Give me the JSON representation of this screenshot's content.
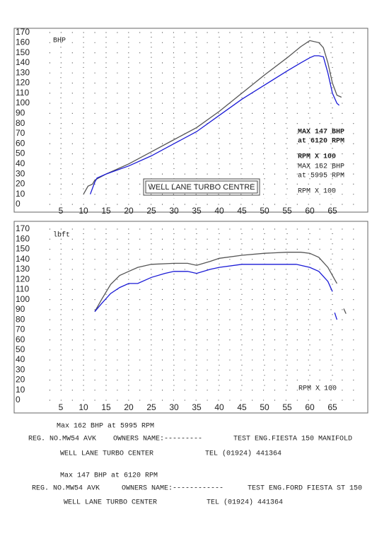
{
  "chart_data": [
    {
      "type": "line",
      "ylabel": "BHP",
      "xlim": [
        0,
        70
      ],
      "ylim": [
        0,
        170
      ],
      "xticks": [
        5,
        10,
        15,
        20,
        25,
        30,
        35,
        40,
        45,
        50,
        55,
        60,
        65
      ],
      "yticks": [
        0,
        10,
        20,
        30,
        40,
        50,
        60,
        70,
        80,
        90,
        100,
        110,
        120,
        130,
        140,
        150,
        160,
        170
      ],
      "grid": true,
      "series": [
        {
          "color": "#555555",
          "x": [
            10,
            11,
            12,
            12.5,
            15,
            20,
            25,
            30,
            35,
            40,
            45,
            50,
            55,
            58,
            60,
            62,
            63,
            64,
            65,
            66,
            67
          ],
          "values": [
            10,
            18,
            20,
            24,
            30,
            40,
            52,
            64,
            76,
            92,
            110,
            128,
            145,
            156,
            162,
            160,
            155,
            140,
            120,
            108,
            106
          ]
        },
        {
          "color": "#1a1ad6",
          "x": [
            11.5,
            12,
            12.5,
            13,
            15,
            20,
            25,
            30,
            35,
            40,
            45,
            50,
            55,
            58,
            60,
            61,
            62,
            63,
            64,
            65,
            66,
            66.5
          ],
          "values": [
            10,
            16,
            22,
            26,
            30,
            38,
            48,
            60,
            72,
            88,
            104,
            118,
            132,
            140,
            145,
            147,
            147,
            146,
            130,
            110,
            100,
            98
          ]
        }
      ],
      "annotations": [
        {
          "text": "MAX 147 BHP",
          "color": "#1a1ad6"
        },
        {
          "text": "at 6120 RPM",
          "color": "#1a1ad6"
        },
        {
          "text": "RPM X 100",
          "color": "#1a1ad6"
        },
        {
          "text": "MAX 162 BHP",
          "color": "#222222"
        },
        {
          "text": "at 5995 RPM",
          "color": "#222222"
        },
        {
          "text": "RPM X 100",
          "color": "#222222"
        }
      ],
      "boxed_label": "WELL LANE TURBO CENTRE"
    },
    {
      "type": "line",
      "ylabel": "lbft",
      "xlim": [
        0,
        70
      ],
      "ylim": [
        0,
        170
      ],
      "xticks": [
        5,
        10,
        15,
        20,
        25,
        30,
        35,
        40,
        45,
        50,
        55,
        60,
        65
      ],
      "yticks": [
        0,
        10,
        20,
        30,
        40,
        50,
        60,
        70,
        80,
        90,
        100,
        110,
        120,
        130,
        140,
        150,
        160,
        170
      ],
      "grid": true,
      "series": [
        {
          "color": "#555555",
          "x": [
            12.5,
            14,
            16,
            18,
            20,
            22,
            25,
            30,
            33,
            35,
            38,
            40,
            45,
            50,
            55,
            58,
            60,
            62,
            64,
            66,
            null,
            67.5,
            68
          ],
          "values": [
            88,
            100,
            115,
            124,
            128,
            132,
            135,
            136,
            136,
            134,
            138,
            141,
            144,
            146,
            147,
            147,
            146,
            142,
            132,
            116,
            null,
            91,
            86
          ]
        },
        {
          "color": "#1a1ad6",
          "x": [
            12.5,
            14,
            16,
            18,
            20,
            22,
            25,
            28,
            30,
            33,
            35,
            38,
            40,
            45,
            50,
            55,
            57,
            60,
            62,
            64,
            65,
            null,
            65.5,
            66
          ],
          "values": [
            88,
            96,
            106,
            112,
            116,
            116,
            122,
            126,
            128,
            128,
            126,
            130,
            132,
            135,
            135,
            135,
            135,
            132,
            128,
            118,
            108,
            null,
            87,
            80
          ]
        }
      ],
      "annotations": [
        {
          "text": "RPM X 100",
          "color": "#222222"
        }
      ]
    }
  ],
  "footer": {
    "block1": {
      "max": "Max 162 BHP at 5995 RPM",
      "reg": "REG. NO.MW54 AVK",
      "owner": "OWNERS NAME:---------",
      "test": "TEST ENG.FIESTA 150 MANIFOLD",
      "centre": "WELL LANE TURBO CENTER",
      "tel": "TEL (01924) 441364"
    },
    "block2": {
      "max": "Max 147 BHP at 6120 RPM",
      "reg": "REG. NO.MW54 AVK",
      "owner": "OWNERS NAME:------------",
      "test": "TEST ENG.FORD FIESTA ST 150",
      "centre": "WELL LANE TURBO CENTER",
      "tel": "TEL (01924) 441364"
    }
  }
}
